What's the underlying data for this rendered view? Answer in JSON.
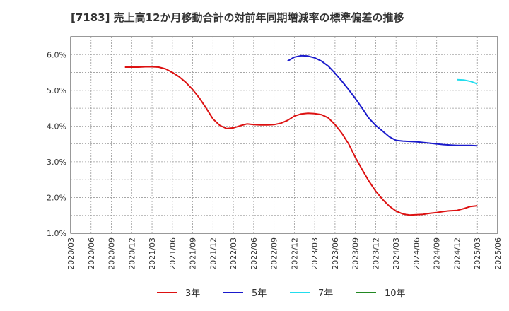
{
  "chart_data": {
    "type": "line",
    "title": "[7183]  売上高12か月移動合計の対前年同期増減率の標準偏差の推移",
    "xlabel": "",
    "ylabel": "",
    "y_ticks": [
      "1.0%",
      "2.0%",
      "3.0%",
      "4.0%",
      "5.0%",
      "6.0%"
    ],
    "ylim": [
      1.0,
      6.5
    ],
    "x_ticks": [
      "2020/03",
      "2020/06",
      "2020/09",
      "2020/12",
      "2021/03",
      "2021/06",
      "2021/09",
      "2021/12",
      "2022/03",
      "2022/06",
      "2022/09",
      "2022/12",
      "2023/03",
      "2023/06",
      "2023/09",
      "2023/12",
      "2024/03",
      "2024/06",
      "2024/09",
      "2024/12",
      "2025/03",
      "2025/06"
    ],
    "grid": true,
    "legend": "bottom",
    "series": [
      {
        "name": "3年",
        "color": "#dd1111",
        "points": [
          [
            "2020/11",
            5.65
          ],
          [
            "2020/12",
            5.65
          ],
          [
            "2021/01",
            5.65
          ],
          [
            "2021/02",
            5.66
          ],
          [
            "2021/03",
            5.66
          ],
          [
            "2021/04",
            5.65
          ],
          [
            "2021/05",
            5.6
          ],
          [
            "2021/06",
            5.5
          ],
          [
            "2021/07",
            5.38
          ],
          [
            "2021/08",
            5.22
          ],
          [
            "2021/09",
            5.02
          ],
          [
            "2021/10",
            4.78
          ],
          [
            "2021/11",
            4.5
          ],
          [
            "2021/12",
            4.2
          ],
          [
            "2022/01",
            4.02
          ],
          [
            "2022/02",
            3.93
          ],
          [
            "2022/03",
            3.95
          ],
          [
            "2022/04",
            4.01
          ],
          [
            "2022/05",
            4.06
          ],
          [
            "2022/06",
            4.04
          ],
          [
            "2022/07",
            4.03
          ],
          [
            "2022/08",
            4.03
          ],
          [
            "2022/09",
            4.04
          ],
          [
            "2022/10",
            4.08
          ],
          [
            "2022/11",
            4.16
          ],
          [
            "2022/12",
            4.28
          ],
          [
            "2023/01",
            4.34
          ],
          [
            "2023/02",
            4.36
          ],
          [
            "2023/03",
            4.35
          ],
          [
            "2023/04",
            4.32
          ],
          [
            "2023/05",
            4.23
          ],
          [
            "2023/06",
            4.04
          ],
          [
            "2023/07",
            3.8
          ],
          [
            "2023/08",
            3.5
          ],
          [
            "2023/09",
            3.12
          ],
          [
            "2023/10",
            2.78
          ],
          [
            "2023/11",
            2.46
          ],
          [
            "2023/12",
            2.18
          ],
          [
            "2024/01",
            1.95
          ],
          [
            "2024/02",
            1.76
          ],
          [
            "2024/03",
            1.62
          ],
          [
            "2024/04",
            1.54
          ],
          [
            "2024/05",
            1.51
          ],
          [
            "2024/06",
            1.52
          ],
          [
            "2024/07",
            1.53
          ],
          [
            "2024/08",
            1.56
          ],
          [
            "2024/09",
            1.58
          ],
          [
            "2024/10",
            1.61
          ],
          [
            "2024/11",
            1.63
          ],
          [
            "2024/12",
            1.64
          ],
          [
            "2025/01",
            1.69
          ],
          [
            "2025/02",
            1.75
          ],
          [
            "2025/03",
            1.77
          ]
        ]
      },
      {
        "name": "5年",
        "color": "#1a1acc",
        "points": [
          [
            "2022/11",
            5.82
          ],
          [
            "2022/12",
            5.93
          ],
          [
            "2023/01",
            5.97
          ],
          [
            "2023/02",
            5.96
          ],
          [
            "2023/03",
            5.91
          ],
          [
            "2023/04",
            5.82
          ],
          [
            "2023/05",
            5.68
          ],
          [
            "2023/06",
            5.48
          ],
          [
            "2023/07",
            5.26
          ],
          [
            "2023/08",
            5.02
          ],
          [
            "2023/09",
            4.77
          ],
          [
            "2023/10",
            4.5
          ],
          [
            "2023/11",
            4.22
          ],
          [
            "2023/12",
            4.02
          ],
          [
            "2024/01",
            3.86
          ],
          [
            "2024/02",
            3.7
          ],
          [
            "2024/03",
            3.6
          ],
          [
            "2024/04",
            3.58
          ],
          [
            "2024/05",
            3.57
          ],
          [
            "2024/06",
            3.56
          ],
          [
            "2024/07",
            3.54
          ],
          [
            "2024/08",
            3.52
          ],
          [
            "2024/09",
            3.5
          ],
          [
            "2024/10",
            3.48
          ],
          [
            "2024/11",
            3.47
          ],
          [
            "2024/12",
            3.46
          ],
          [
            "2025/01",
            3.46
          ],
          [
            "2025/02",
            3.46
          ],
          [
            "2025/03",
            3.45
          ]
        ]
      },
      {
        "name": "7年",
        "color": "#22ddee",
        "points": [
          [
            "2024/12",
            5.3
          ],
          [
            "2025/01",
            5.29
          ],
          [
            "2025/02",
            5.25
          ],
          [
            "2025/03",
            5.18
          ]
        ]
      },
      {
        "name": "10年",
        "color": "#228822",
        "points": []
      }
    ]
  }
}
